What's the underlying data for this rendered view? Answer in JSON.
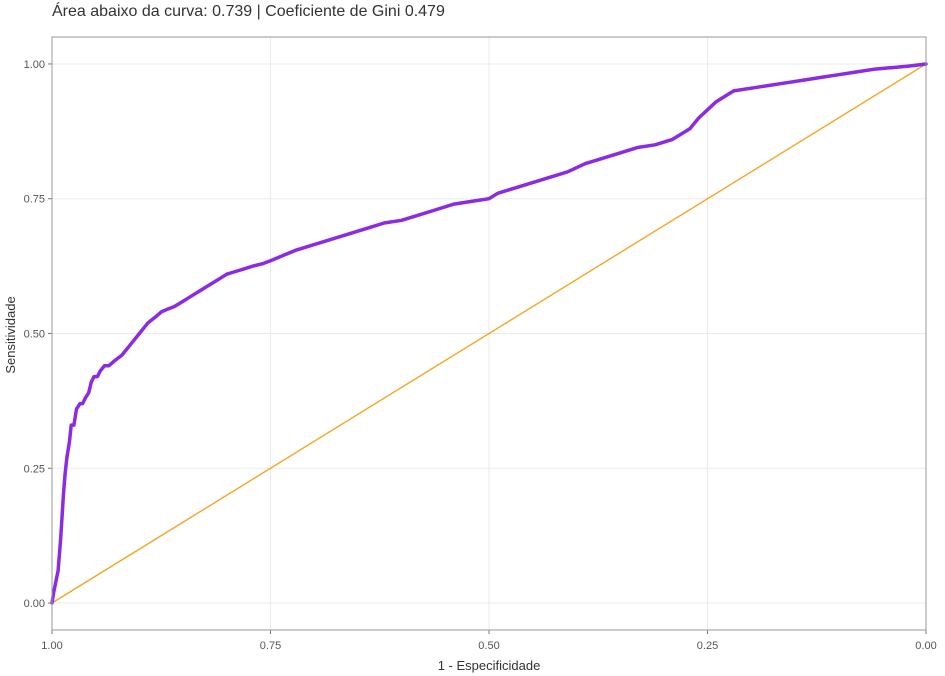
{
  "chart_data": {
    "type": "line",
    "title": "Área abaixo da curva: 0.739 | Coeficiente de Gini 0.479",
    "xlabel": "1 - Especificidade",
    "ylabel": "Sensitividade",
    "xlim": [
      1.0,
      0.0
    ],
    "ylim": [
      -0.05,
      1.05
    ],
    "x_reversed": true,
    "grid": true,
    "x_ticks": [
      1.0,
      0.75,
      0.5,
      0.25,
      0.0
    ],
    "x_tick_labels": [
      "1.00",
      "0.75",
      "0.50",
      "0.25",
      "0.00"
    ],
    "y_ticks": [
      0.0,
      0.25,
      0.5,
      0.75,
      1.0
    ],
    "y_tick_labels": [
      "0.00",
      "0.25",
      "0.50",
      "0.75",
      "1.00"
    ],
    "series": [
      {
        "color": "#8b2be2",
        "x": [
          1.0,
          0.998,
          0.993,
          0.99,
          0.987,
          0.985,
          0.983,
          0.98,
          0.978,
          0.975,
          0.972,
          0.968,
          0.965,
          0.962,
          0.958,
          0.955,
          0.952,
          0.948,
          0.945,
          0.94,
          0.935,
          0.928,
          0.92,
          0.91,
          0.9,
          0.89,
          0.882,
          0.875,
          0.868,
          0.86,
          0.85,
          0.84,
          0.83,
          0.82,
          0.81,
          0.8,
          0.79,
          0.78,
          0.77,
          0.758,
          0.75,
          0.735,
          0.72,
          0.7,
          0.68,
          0.66,
          0.64,
          0.62,
          0.6,
          0.58,
          0.56,
          0.54,
          0.52,
          0.5,
          0.49,
          0.47,
          0.45,
          0.43,
          0.41,
          0.39,
          0.37,
          0.35,
          0.33,
          0.31,
          0.29,
          0.28,
          0.27,
          0.26,
          0.25,
          0.24,
          0.23,
          0.22,
          0.2,
          0.18,
          0.16,
          0.14,
          0.12,
          0.1,
          0.08,
          0.06,
          0.04,
          0.02,
          0.0
        ],
        "y": [
          0.0,
          0.02,
          0.06,
          0.12,
          0.2,
          0.24,
          0.27,
          0.3,
          0.33,
          0.33,
          0.36,
          0.37,
          0.37,
          0.38,
          0.39,
          0.41,
          0.42,
          0.42,
          0.43,
          0.44,
          0.44,
          0.45,
          0.46,
          0.48,
          0.5,
          0.52,
          0.53,
          0.54,
          0.545,
          0.55,
          0.56,
          0.57,
          0.58,
          0.59,
          0.6,
          0.61,
          0.615,
          0.62,
          0.625,
          0.63,
          0.635,
          0.645,
          0.655,
          0.665,
          0.675,
          0.685,
          0.695,
          0.705,
          0.71,
          0.72,
          0.73,
          0.74,
          0.745,
          0.75,
          0.76,
          0.77,
          0.78,
          0.79,
          0.8,
          0.815,
          0.825,
          0.835,
          0.845,
          0.85,
          0.86,
          0.87,
          0.88,
          0.9,
          0.915,
          0.93,
          0.94,
          0.95,
          0.955,
          0.96,
          0.965,
          0.97,
          0.975,
          0.98,
          0.985,
          0.99,
          0.993,
          0.996,
          1.0
        ]
      },
      {
        "color": "#f5a623",
        "x": [
          1.0,
          0.0
        ],
        "y": [
          0.0,
          1.0
        ]
      }
    ]
  }
}
